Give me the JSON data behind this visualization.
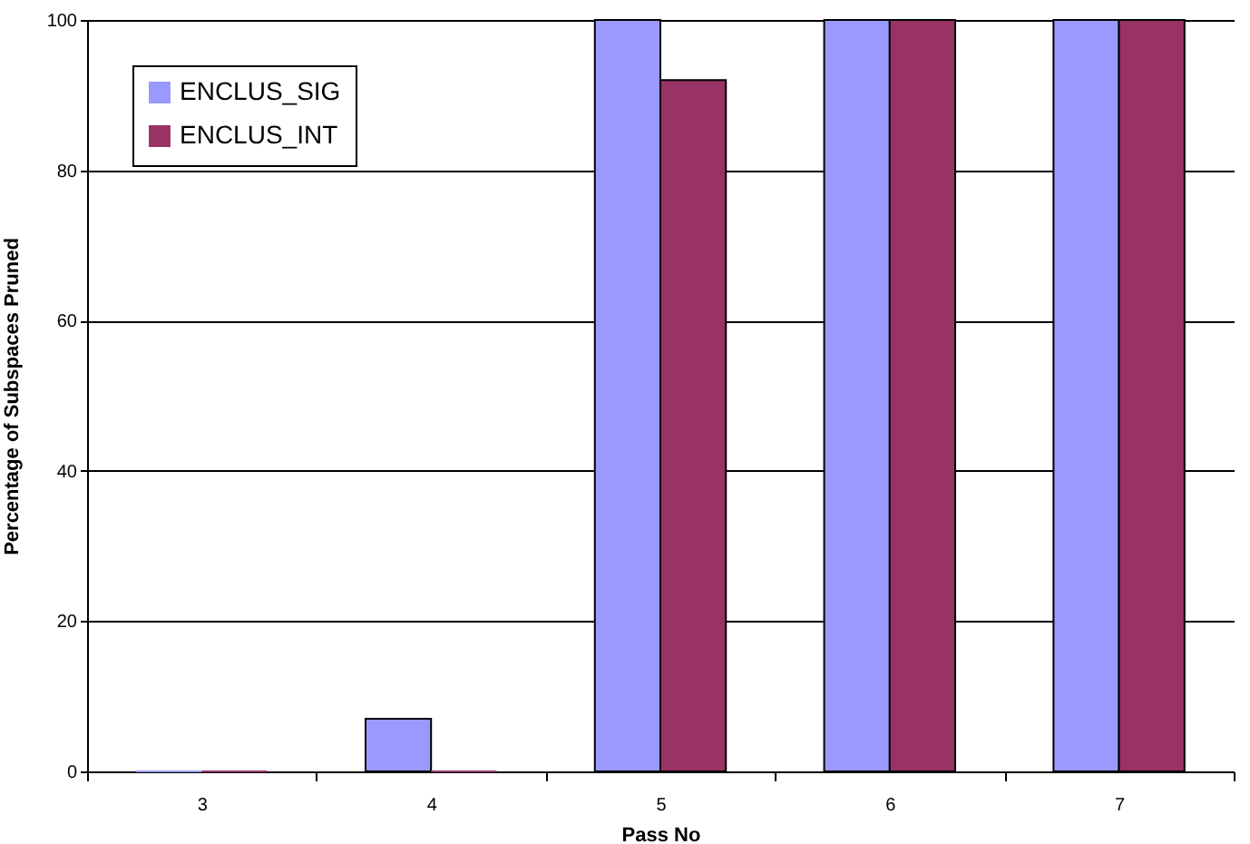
{
  "chart_data": {
    "type": "bar",
    "xlabel": "Pass No",
    "ylabel": "Percentage of Subspaces Pruned",
    "categories": [
      "3",
      "4",
      "5",
      "6",
      "7"
    ],
    "series": [
      {
        "name": "ENCLUS_SIG",
        "color": "#9999ff",
        "values": [
          0,
          7,
          100,
          100,
          100
        ]
      },
      {
        "name": "ENCLUS_INT",
        "color": "#993366",
        "values": [
          0,
          0,
          92,
          100,
          100
        ]
      }
    ],
    "ylim": [
      0,
      100
    ],
    "yticks": [
      0,
      20,
      40,
      60,
      80,
      100
    ],
    "grid": "y",
    "legend": "top left"
  }
}
